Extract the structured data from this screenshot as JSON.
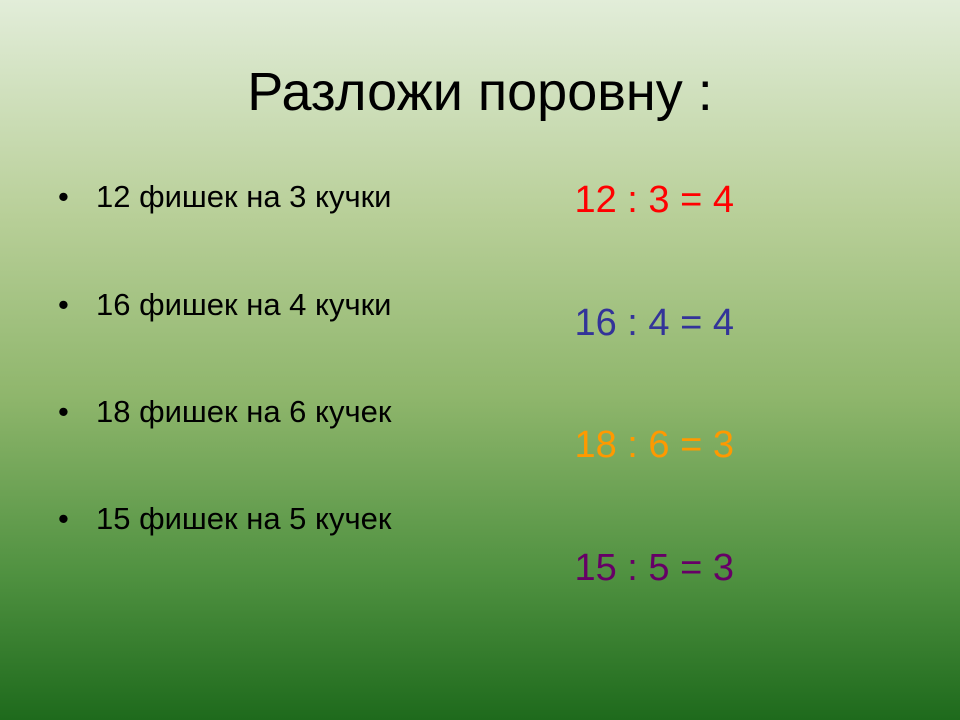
{
  "title": "Разложи поровну :",
  "tasks": [
    {
      "text": "12 фишек на 3 кучки"
    },
    {
      "text": "16 фишек на 4 кучки"
    },
    {
      "text": "18 фишек на 6 кучек"
    },
    {
      "text": "15 фишек на 5 кучек"
    }
  ],
  "equations": [
    {
      "text": "12 : 3 = 4",
      "color": "#ff0000"
    },
    {
      "text": "16 : 4 = 4",
      "color": "#333399"
    },
    {
      "text": "18 : 6 = 3",
      "color": "#ff9900"
    },
    {
      "text": "15 : 5 = 3",
      "color": "#660066"
    }
  ]
}
